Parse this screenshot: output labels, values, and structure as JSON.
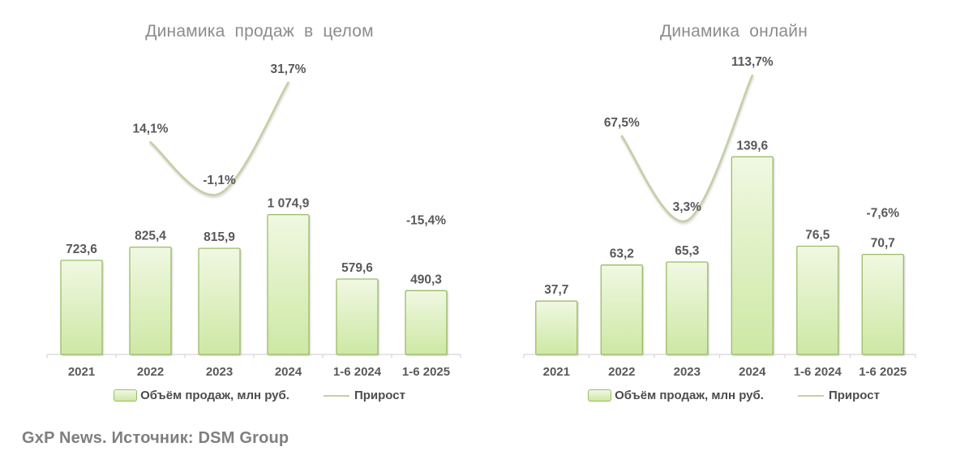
{
  "footer": {
    "text": "GxP News. Источник: DSM Group"
  },
  "colors": {
    "bar_fill_top": "#f0f8e2",
    "bar_fill_bottom": "#cde8a4",
    "bar_border": "#9bbc66",
    "line": "#c6cfa4",
    "label": "#595959",
    "title": "#8c8c8c",
    "axis": "#d6d6d6"
  },
  "chart_data": [
    {
      "type": "bar",
      "title": "Динамика продаж в целом",
      "categories": [
        "2021",
        "2022",
        "2023",
        "2024",
        "1-6 2024",
        "1-6 2025"
      ],
      "series": [
        {
          "name": "Объём продаж, млн руб.",
          "type": "bar",
          "values": [
            723.6,
            825.4,
            815.9,
            1074.9,
            579.6,
            490.3
          ],
          "labels": [
            "723,6",
            "825,4",
            "815,9",
            "1 074,9",
            "579,6",
            "490,3"
          ]
        },
        {
          "name": "Прирост",
          "type": "line",
          "points": [
            {
              "category_index": 1,
              "value": 14.1,
              "label": "14,1%"
            },
            {
              "category_index": 2,
              "value": -1.1,
              "label": "-1,1%"
            },
            {
              "category_index": 3,
              "value": 31.7,
              "label": "31,7%"
            }
          ],
          "annotations": [
            {
              "category_index": 5,
              "value": -15.4,
              "label": "-15,4%"
            }
          ]
        }
      ],
      "xlabel": "",
      "ylabel": "",
      "ylim": [
        0,
        2350
      ],
      "y2lim": [
        -48.5,
        41.7
      ],
      "grid": false,
      "legend_position": "bottom"
    },
    {
      "type": "bar",
      "title": "Динамика онлайн",
      "categories": [
        "2021",
        "2022",
        "2023",
        "2024",
        "1-6 2024",
        "1-6 2025"
      ],
      "series": [
        {
          "name": "Объём продаж, млн руб.",
          "type": "bar",
          "values": [
            37.7,
            63.2,
            65.3,
            139.6,
            76.5,
            70.7
          ],
          "labels": [
            "37,7",
            "63,2",
            "65,3",
            "139,6",
            "76,5",
            "70,7"
          ]
        },
        {
          "name": "Прирост",
          "type": "line",
          "points": [
            {
              "category_index": 1,
              "value": 67.5,
              "label": "67,5%"
            },
            {
              "category_index": 2,
              "value": 3.3,
              "label": "3,3%"
            },
            {
              "category_index": 3,
              "value": 113.7,
              "label": "113,7%"
            }
          ],
          "annotations": [
            {
              "category_index": 5,
              "value": -7.6,
              "label": "-7,6%"
            }
          ]
        }
      ],
      "xlabel": "",
      "ylabel": "",
      "ylim": [
        0,
        216
      ],
      "y2lim": [
        -98.6,
        134.1
      ],
      "grid": false,
      "legend_position": "bottom"
    }
  ]
}
